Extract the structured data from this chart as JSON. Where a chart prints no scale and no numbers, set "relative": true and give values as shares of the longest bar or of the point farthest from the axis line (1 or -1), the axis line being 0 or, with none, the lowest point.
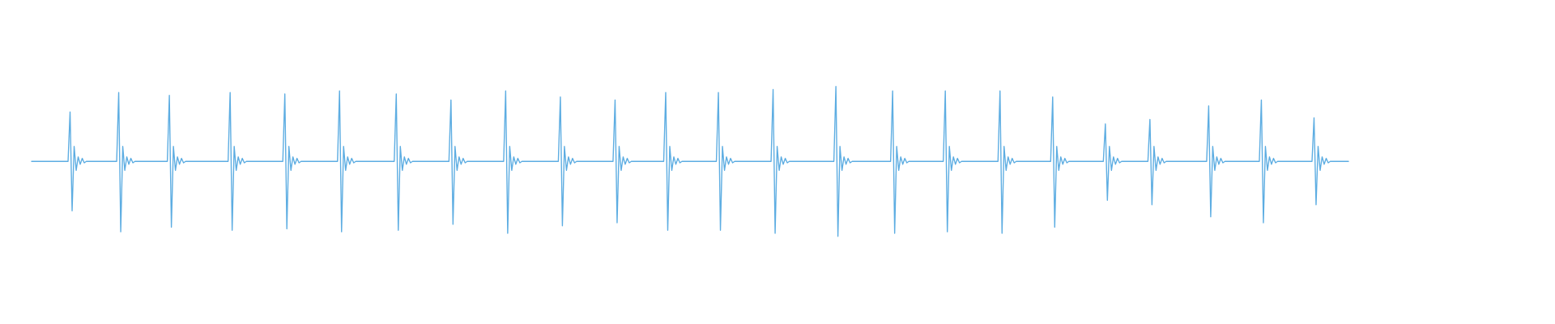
{
  "chart_data": {
    "type": "line",
    "relative": true,
    "color": "#5dade2",
    "categories": [
      null,
      null,
      null,
      null,
      null,
      null,
      null,
      null,
      null,
      null,
      null,
      null,
      null,
      null,
      null,
      null,
      null,
      null,
      null,
      null,
      null,
      null,
      null,
      null,
      null,
      null,
      null,
      null,
      null,
      null,
      null,
      null,
      null,
      null,
      null,
      null,
      null,
      null,
      null,
      null,
      null,
      null,
      null,
      null,
      null,
      null,
      null,
      null,
      null,
      null,
      null,
      null,
      null,
      null,
      null,
      null,
      null,
      null,
      null,
      null,
      null,
      null,
      null,
      null,
      null,
      null,
      null,
      null,
      null,
      null,
      null,
      null,
      null,
      null,
      null,
      null,
      null,
      null,
      null,
      null,
      null,
      null,
      null,
      null,
      null,
      null,
      null,
      null,
      null,
      null,
      null,
      null,
      null,
      null,
      null,
      null,
      null,
      null,
      null,
      null,
      null,
      null,
      null,
      null,
      null,
      null,
      null,
      null,
      null,
      null,
      null,
      null,
      null,
      null,
      null,
      null,
      null,
      null,
      null,
      null,
      null,
      null,
      null,
      null,
      null,
      null,
      null,
      null,
      null,
      null,
      null,
      null,
      null,
      null,
      null,
      null,
      null,
      null,
      null,
      null,
      null,
      null,
      null,
      null,
      null,
      null,
      null,
      null,
      null,
      null,
      null,
      null,
      null,
      null,
      null,
      null,
      null,
      null,
      null,
      null,
      null,
      null,
      null,
      null,
      null,
      null,
      null,
      null,
      null,
      null,
      null,
      null,
      null,
      null,
      null,
      null,
      null,
      null,
      null,
      null,
      null,
      null,
      null,
      null,
      null,
      null,
      null,
      null,
      null,
      null,
      null,
      null,
      null,
      null,
      null,
      null,
      null,
      null,
      null,
      null,
      null,
      null,
      null,
      null,
      null,
      null,
      null,
      null,
      null,
      null,
      null,
      null,
      null,
      null,
      null,
      null,
      null,
      null,
      null,
      null,
      null,
      null,
      null,
      null,
      null,
      null,
      null,
      null,
      null,
      null,
      null,
      null,
      null,
      null,
      null,
      null,
      null,
      null,
      null,
      null,
      null,
      null,
      null,
      null,
      null,
      null,
      null,
      null,
      null,
      null,
      null,
      null,
      null,
      null,
      null,
      null,
      null,
      null,
      null,
      null,
      null,
      null,
      null,
      null,
      null,
      null,
      null,
      null,
      null,
      null,
      null,
      null,
      null,
      null,
      null,
      null,
      null,
      null,
      null,
      null,
      null,
      null,
      null,
      null,
      null,
      null,
      null,
      null,
      null,
      null,
      null,
      null,
      null,
      null,
      null,
      null,
      null,
      null,
      null,
      null,
      null,
      null,
      null,
      null,
      null,
      null,
      null,
      null,
      null,
      null,
      null,
      null,
      null,
      null,
      null,
      null,
      null,
      null,
      null,
      null,
      null,
      null,
      null,
      null,
      null,
      null,
      null,
      null,
      null,
      null,
      null,
      null,
      null,
      null,
      null,
      null,
      null,
      null,
      null,
      null,
      null,
      null,
      null,
      null,
      null,
      null,
      null,
      null,
      null,
      null,
      null,
      null,
      null,
      null,
      null,
      null,
      null,
      null,
      null,
      null,
      null,
      null,
      null,
      null,
      null,
      null,
      null,
      null,
      null,
      null,
      null,
      null,
      null,
      null,
      null,
      null,
      null,
      null,
      null,
      null,
      null,
      null,
      null,
      null,
      null,
      null,
      null,
      null,
      null,
      null,
      null,
      null,
      null,
      null,
      null,
      null,
      null,
      null,
      null,
      null,
      null,
      null,
      null,
      null,
      null,
      null,
      null,
      null,
      null,
      null,
      null,
      null,
      null,
      null,
      null,
      null,
      null,
      null,
      null,
      null,
      null,
      null,
      null,
      null,
      null,
      null,
      null,
      null,
      null,
      null,
      null,
      null,
      null,
      null,
      null,
      null,
      null,
      null,
      null,
      null,
      null,
      null,
      null,
      null,
      null,
      null,
      null,
      null,
      null,
      null,
      null,
      null,
      null,
      null,
      null,
      null,
      null,
      null,
      null,
      null,
      null,
      null,
      null,
      null,
      null,
      null,
      null,
      null,
      null,
      null,
      null,
      null,
      null,
      null,
      null,
      null,
      null,
      null,
      null,
      null,
      null,
      null,
      null,
      null,
      null,
      null,
      null,
      null,
      null,
      null,
      null,
      null,
      null,
      null,
      null,
      null,
      null,
      null,
      null,
      null,
      null,
      null,
      null,
      null,
      null,
      null,
      null,
      null,
      null,
      null,
      null,
      null,
      null,
      null,
      null,
      null,
      null,
      null,
      null,
      null,
      null,
      null,
      null,
      null,
      null,
      null,
      null,
      null,
      null,
      null,
      null,
      null,
      null,
      null,
      null,
      null,
      null,
      null,
      null,
      null,
      null,
      null,
      null,
      null,
      null,
      null,
      null,
      null,
      null,
      null,
      null,
      null,
      null,
      null,
      null,
      null,
      null,
      null,
      null,
      null,
      null,
      null,
      null,
      null,
      null,
      null,
      null,
      null,
      null,
      null,
      null,
      null,
      null,
      null,
      null,
      null,
      null,
      null,
      null,
      null,
      null,
      null,
      null,
      null,
      null,
      null,
      null,
      null,
      null,
      null,
      null,
      null,
      null,
      null,
      null,
      null,
      null,
      null,
      null,
      null,
      null,
      null,
      null,
      null,
      null,
      null,
      null,
      null,
      null,
      null,
      null,
      null,
      null,
      null,
      null,
      null,
      null,
      null,
      null,
      null,
      null,
      null,
      null,
      null,
      null,
      null,
      null,
      null,
      null,
      null,
      null,
      null,
      null,
      null,
      null,
      null,
      null,
      null,
      null,
      null,
      null,
      null,
      null,
      null,
      null,
      null,
      null,
      null,
      null,
      null,
      null
    ],
    "values": [
      0.5,
      0.5,
      0.5,
      0.5,
      0.5,
      0.5,
      0.5,
      0.5,
      0.5,
      0.5,
      0.5,
      0.5,
      0.5,
      0.5,
      0.5,
      0.5,
      0.5,
      0.5,
      0.5,
      0.83,
      0.17,
      0.6,
      0.44,
      0.53,
      0.48,
      0.52,
      0.49,
      0.5,
      0.5,
      0.5,
      0.5,
      0.5,
      0.5,
      0.5,
      0.5,
      0.5,
      0.5,
      0.5,
      0.5,
      0.5,
      0.5,
      0.5,
      0.5,
      0.96,
      0.03,
      0.6,
      0.44,
      0.53,
      0.48,
      0.52,
      0.49,
      0.5,
      0.5,
      0.5,
      0.5,
      0.5,
      0.5,
      0.5,
      0.5,
      0.5,
      0.5,
      0.5,
      0.5,
      0.5,
      0.5,
      0.5,
      0.5,
      0.5,
      0.94,
      0.06,
      0.6,
      0.44,
      0.53,
      0.48,
      0.52,
      0.49,
      0.5,
      0.5,
      0.5,
      0.5,
      0.5,
      0.5,
      0.5,
      0.5,
      0.5,
      0.5,
      0.5,
      0.5,
      0.5,
      0.5,
      0.5,
      0.5,
      0.5,
      0.5,
      0.5,
      0.5,
      0.5,
      0.5,
      0.96,
      0.04,
      0.6,
      0.44,
      0.53,
      0.48,
      0.52,
      0.49,
      0.5,
      0.5,
      0.5,
      0.5,
      0.5,
      0.5,
      0.5,
      0.5,
      0.5,
      0.5,
      0.5,
      0.5,
      0.5,
      0.5,
      0.5,
      0.5,
      0.5,
      0.5,
      0.5,
      0.95,
      0.05,
      0.6,
      0.44,
      0.53,
      0.48,
      0.52,
      0.49,
      0.5,
      0.5,
      0.5,
      0.5,
      0.5,
      0.5,
      0.5,
      0.5,
      0.5,
      0.5,
      0.5,
      0.5,
      0.5,
      0.5,
      0.5,
      0.5,
      0.5,
      0.5,
      0.5,
      0.97,
      0.03,
      0.6,
      0.44,
      0.53,
      0.48,
      0.52,
      0.49,
      0.5,
      0.5,
      0.5,
      0.5,
      0.5,
      0.5,
      0.5,
      0.5,
      0.5,
      0.5,
      0.5,
      0.5,
      0.5,
      0.5,
      0.5,
      0.5,
      0.5,
      0.5,
      0.5,
      0.5,
      0.95,
      0.04,
      0.6,
      0.44,
      0.53,
      0.48,
      0.52,
      0.49,
      0.5,
      0.5,
      0.5,
      0.5,
      0.5,
      0.5,
      0.5,
      0.5,
      0.5,
      0.5,
      0.5,
      0.5,
      0.5,
      0.5,
      0.5,
      0.5,
      0.5,
      0.5,
      0.5,
      0.91,
      0.08,
      0.6,
      0.44,
      0.53,
      0.48,
      0.52,
      0.49,
      0.5,
      0.5,
      0.5,
      0.5,
      0.5,
      0.5,
      0.5,
      0.5,
      0.5,
      0.5,
      0.5,
      0.5,
      0.5,
      0.5,
      0.5,
      0.5,
      0.5,
      0.5,
      0.5,
      0.97,
      0.02,
      0.6,
      0.44,
      0.53,
      0.48,
      0.52,
      0.49,
      0.5,
      0.5,
      0.5,
      0.5,
      0.5,
      0.5,
      0.5,
      0.5,
      0.5,
      0.5,
      0.5,
      0.5,
      0.5,
      0.5,
      0.5,
      0.5,
      0.5,
      0.5,
      0.5,
      0.93,
      0.07,
      0.6,
      0.44,
      0.53,
      0.48,
      0.52,
      0.49,
      0.5,
      0.5,
      0.5,
      0.5,
      0.5,
      0.5,
      0.5,
      0.5,
      0.5,
      0.5,
      0.5,
      0.5,
      0.5,
      0.5,
      0.5,
      0.5,
      0.5,
      0.5,
      0.5,
      0.91,
      0.09,
      0.6,
      0.44,
      0.53,
      0.48,
      0.52,
      0.49,
      0.5,
      0.5,
      0.5,
      0.5,
      0.5,
      0.5,
      0.5,
      0.5,
      0.5,
      0.5,
      0.5,
      0.5,
      0.5,
      0.5,
      0.5,
      0.5,
      0.5,
      0.96,
      0.04,
      0.6,
      0.44,
      0.53,
      0.48,
      0.52,
      0.49,
      0.5,
      0.5,
      0.5,
      0.5,
      0.5,
      0.5,
      0.5,
      0.5,
      0.5,
      0.5,
      0.5,
      0.5,
      0.5,
      0.5,
      0.5,
      0.5,
      0.5,
      0.5,
      0.96,
      0.04,
      0.6,
      0.44,
      0.53,
      0.48,
      0.52,
      0.49,
      0.5,
      0.5,
      0.5,
      0.5,
      0.5,
      0.5,
      0.5,
      0.5,
      0.5,
      0.5,
      0.5,
      0.5,
      0.5,
      0.5,
      0.5,
      0.5,
      0.5,
      0.5,
      0.5,
      0.98,
      0.02,
      0.6,
      0.44,
      0.53,
      0.48,
      0.52,
      0.49,
      0.5,
      0.5,
      0.5,
      0.5,
      0.5,
      0.5,
      0.5,
      0.5,
      0.5,
      0.5,
      0.5,
      0.5,
      0.5,
      0.5,
      0.5,
      0.5,
      0.5,
      0.5,
      0.5,
      0.5,
      0.5,
      0.5,
      0.5,
      1.0,
      0.0,
      0.6,
      0.44,
      0.53,
      0.48,
      0.52,
      0.49,
      0.5,
      0.5,
      0.5,
      0.5,
      0.5,
      0.5,
      0.5,
      0.5,
      0.5,
      0.5,
      0.5,
      0.5,
      0.5,
      0.5,
      0.5,
      0.5,
      0.5,
      0.5,
      0.5,
      0.5,
      0.97,
      0.02,
      0.6,
      0.44,
      0.53,
      0.48,
      0.52,
      0.49,
      0.5,
      0.5,
      0.5,
      0.5,
      0.5,
      0.5,
      0.5,
      0.5,
      0.5,
      0.5,
      0.5,
      0.5,
      0.5,
      0.5,
      0.5,
      0.5,
      0.5,
      0.5,
      0.97,
      0.03,
      0.6,
      0.44,
      0.53,
      0.48,
      0.52,
      0.49,
      0.5,
      0.5,
      0.5,
      0.5,
      0.5,
      0.5,
      0.5,
      0.5,
      0.5,
      0.5,
      0.5,
      0.5,
      0.5,
      0.5,
      0.5,
      0.5,
      0.5,
      0.5,
      0.5,
      0.97,
      0.02,
      0.6,
      0.44,
      0.53,
      0.48,
      0.52,
      0.49,
      0.5,
      0.5,
      0.5,
      0.5,
      0.5,
      0.5,
      0.5,
      0.5,
      0.5,
      0.5,
      0.5,
      0.5,
      0.5,
      0.5,
      0.5,
      0.5,
      0.5,
      0.5,
      0.93,
      0.06,
      0.6,
      0.44,
      0.53,
      0.48,
      0.52,
      0.49,
      0.5,
      0.5,
      0.5,
      0.5,
      0.5,
      0.5,
      0.5,
      0.5,
      0.5,
      0.5,
      0.5,
      0.5,
      0.5,
      0.5,
      0.5,
      0.5,
      0.5,
      0.5,
      0.75,
      0.24,
      0.6,
      0.44,
      0.53,
      0.48,
      0.52,
      0.49,
      0.5,
      0.5,
      0.5,
      0.5,
      0.5,
      0.5,
      0.5,
      0.5,
      0.5,
      0.5,
      0.5,
      0.5,
      0.5,
      0.5,
      0.78,
      0.21,
      0.6,
      0.44,
      0.53,
      0.48,
      0.52,
      0.49,
      0.5,
      0.5,
      0.5,
      0.5,
      0.5,
      0.5,
      0.5,
      0.5,
      0.5,
      0.5,
      0.5,
      0.5,
      0.5,
      0.5,
      0.5,
      0.5,
      0.5,
      0.5,
      0.5,
      0.5,
      0.5,
      0.87,
      0.13,
      0.6,
      0.44,
      0.53,
      0.48,
      0.52,
      0.49,
      0.5,
      0.5,
      0.5,
      0.5,
      0.5,
      0.5,
      0.5,
      0.5,
      0.5,
      0.5,
      0.5,
      0.5,
      0.5,
      0.5,
      0.5,
      0.5,
      0.5,
      0.5,
      0.91,
      0.09,
      0.6,
      0.44,
      0.53,
      0.48,
      0.52,
      0.49,
      0.5,
      0.5,
      0.5,
      0.5,
      0.5,
      0.5,
      0.5,
      0.5,
      0.5,
      0.5,
      0.5,
      0.5,
      0.5,
      0.5,
      0.5,
      0.5,
      0.5,
      0.5,
      0.79,
      0.21,
      0.6,
      0.44,
      0.53,
      0.48,
      0.52,
      0.49,
      0.5,
      0.5,
      0.5,
      0.5,
      0.5,
      0.5,
      0.5,
      0.5,
      0.5,
      0.5
    ]
  }
}
